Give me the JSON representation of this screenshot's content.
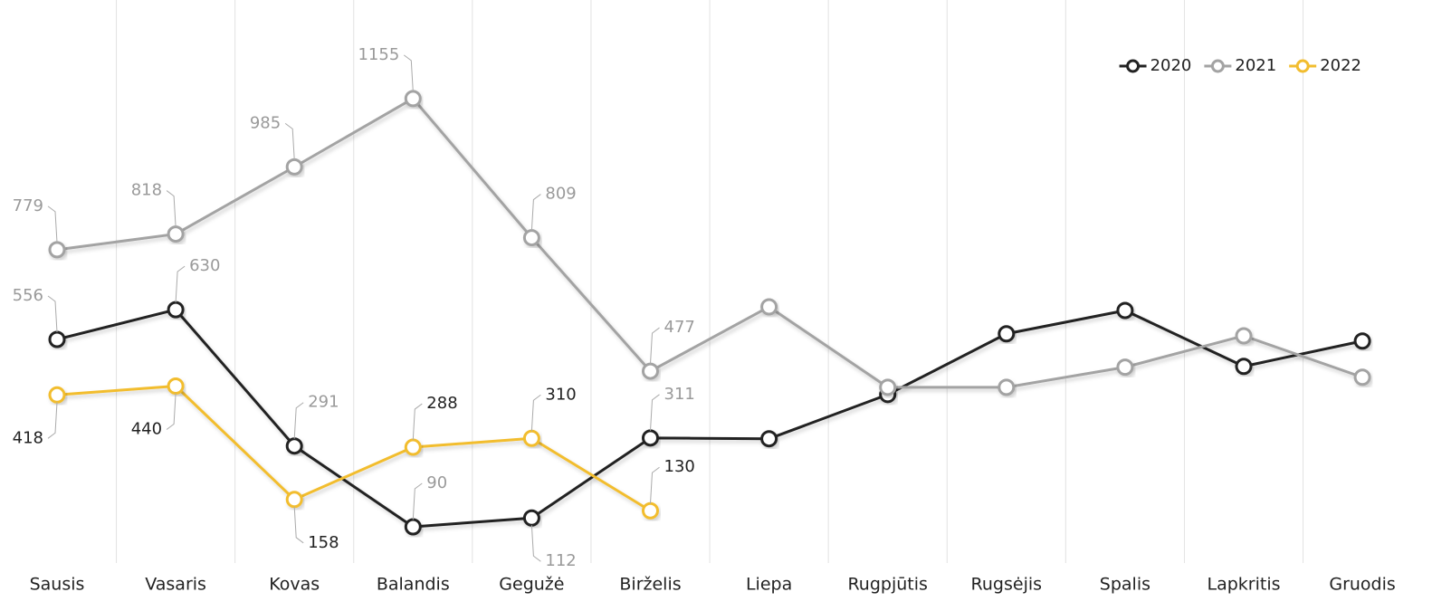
{
  "chart_data": {
    "type": "line",
    "categories": [
      "Sausis",
      "Vasaris",
      "Kovas",
      "Balandis",
      "Gegužė",
      "Birželis",
      "Liepa",
      "Rugpjūtis",
      "Rugsėjis",
      "Spalis",
      "Lapkritis",
      "Gruodis"
    ],
    "ylim": [
      0,
      1400
    ],
    "legend": "top-right",
    "series": [
      {
        "name": "2020",
        "color": "#222222",
        "label_color": "#9a9a9a",
        "values": [
          556,
          630,
          291,
          90,
          112,
          311,
          309,
          419,
          570,
          628,
          489,
          552
        ],
        "value_labels": [
          556,
          630,
          291,
          90,
          112,
          311,
          null,
          null,
          null,
          null,
          null,
          null
        ]
      },
      {
        "name": "2021",
        "color": "#a3a3a3",
        "label_color": "#9a9a9a",
        "values": [
          779,
          818,
          985,
          1155,
          809,
          477,
          637,
          437,
          437,
          487,
          565,
          462
        ],
        "value_labels": [
          779,
          818,
          985,
          1155,
          809,
          477,
          null,
          null,
          null,
          null,
          null,
          null
        ]
      },
      {
        "name": "2022",
        "color": "#f2bd2f",
        "label_color": "#222222",
        "values": [
          418,
          440,
          158,
          288,
          310,
          130,
          null,
          null,
          null,
          null,
          null,
          null
        ],
        "value_labels": [
          418,
          440,
          158,
          288,
          310,
          130,
          null,
          null,
          null,
          null,
          null,
          null
        ]
      }
    ]
  }
}
